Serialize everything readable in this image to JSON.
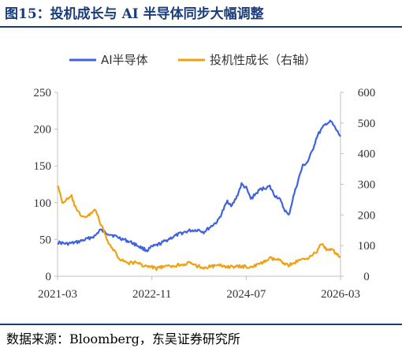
{
  "title": "图15：投机成长与 AI 半导体同步大幅调整",
  "source": "数据来源：Bloomberg，东吴证券研究所",
  "chart_data": {
    "type": "line",
    "x_ticks": [
      "2021-03",
      "2022-11",
      "2024-07",
      "2026-03"
    ],
    "xlim": [
      "2021-03",
      "2026-03"
    ],
    "left_axis": {
      "ylim": [
        0,
        250
      ],
      "ticks": [
        "0",
        "50",
        "100",
        "150",
        "200",
        "250"
      ]
    },
    "right_axis": {
      "ylim": [
        0,
        600
      ],
      "ticks": [
        "0",
        "100",
        "200",
        "300",
        "400",
        "500",
        "600"
      ]
    },
    "legend_position": "top-center",
    "series": [
      {
        "name": "AI半导体",
        "axis": "left",
        "color": "#3f63e0",
        "points": [
          [
            "2021-03",
            46
          ],
          [
            "2021-05",
            44
          ],
          [
            "2021-07",
            46
          ],
          [
            "2021-09",
            50
          ],
          [
            "2021-11",
            55
          ],
          [
            "2021-12",
            63
          ],
          [
            "2022-01",
            60
          ],
          [
            "2022-03",
            55
          ],
          [
            "2022-05",
            50
          ],
          [
            "2022-07",
            45
          ],
          [
            "2022-09",
            38
          ],
          [
            "2022-10",
            35
          ],
          [
            "2022-11",
            40
          ],
          [
            "2022-12",
            42
          ],
          [
            "2023-01",
            45
          ],
          [
            "2023-03",
            52
          ],
          [
            "2023-05",
            58
          ],
          [
            "2023-07",
            62
          ],
          [
            "2023-09",
            63
          ],
          [
            "2023-10",
            60
          ],
          [
            "2023-12",
            70
          ],
          [
            "2024-01",
            75
          ],
          [
            "2024-02",
            88
          ],
          [
            "2024-03",
            102
          ],
          [
            "2024-04",
            96
          ],
          [
            "2024-05",
            108
          ],
          [
            "2024-06",
            125
          ],
          [
            "2024-07",
            120
          ],
          [
            "2024-08",
            105
          ],
          [
            "2024-09",
            112
          ],
          [
            "2024-10",
            118
          ],
          [
            "2024-11",
            120
          ],
          [
            "2024-12",
            122
          ],
          [
            "2025-01",
            110
          ],
          [
            "2025-02",
            106
          ],
          [
            "2025-03",
            92
          ],
          [
            "2025-04",
            82
          ],
          [
            "2025-05",
            108
          ],
          [
            "2025-06",
            130
          ],
          [
            "2025-07",
            150
          ],
          [
            "2025-08",
            155
          ],
          [
            "2025-09",
            170
          ],
          [
            "2025-10",
            190
          ],
          [
            "2025-11",
            200
          ],
          [
            "2025-12",
            208
          ],
          [
            "2026-01",
            210
          ],
          [
            "2026-02",
            200
          ],
          [
            "2026-03",
            190
          ]
        ]
      },
      {
        "name": "投机性成长（右轴）",
        "axis": "right",
        "color": "#f0a010",
        "points": [
          [
            "2021-03",
            300
          ],
          [
            "2021-04",
            240
          ],
          [
            "2021-05",
            250
          ],
          [
            "2021-06",
            260
          ],
          [
            "2021-07",
            215
          ],
          [
            "2021-08",
            200
          ],
          [
            "2021-09",
            190
          ],
          [
            "2021-10",
            205
          ],
          [
            "2021-11",
            220
          ],
          [
            "2021-12",
            175
          ],
          [
            "2022-01",
            140
          ],
          [
            "2022-02",
            100
          ],
          [
            "2022-03",
            85
          ],
          [
            "2022-04",
            60
          ],
          [
            "2022-05",
            50
          ],
          [
            "2022-06",
            42
          ],
          [
            "2022-07",
            45
          ],
          [
            "2022-08",
            44
          ],
          [
            "2022-09",
            36
          ],
          [
            "2022-10",
            32
          ],
          [
            "2022-11",
            30
          ],
          [
            "2022-12",
            25
          ],
          [
            "2023-01",
            30
          ],
          [
            "2023-03",
            32
          ],
          [
            "2023-05",
            38
          ],
          [
            "2023-07",
            43
          ],
          [
            "2023-08",
            36
          ],
          [
            "2023-10",
            28
          ],
          [
            "2023-12",
            33
          ],
          [
            "2024-02",
            34
          ],
          [
            "2024-04",
            30
          ],
          [
            "2024-06",
            32
          ],
          [
            "2024-08",
            30
          ],
          [
            "2024-10",
            40
          ],
          [
            "2024-12",
            58
          ],
          [
            "2025-02",
            52
          ],
          [
            "2025-04",
            36
          ],
          [
            "2025-06",
            50
          ],
          [
            "2025-08",
            60
          ],
          [
            "2025-10",
            80
          ],
          [
            "2025-11",
            108
          ],
          [
            "2025-12",
            85
          ],
          [
            "2026-01",
            90
          ],
          [
            "2026-02",
            75
          ],
          [
            "2026-03",
            65
          ]
        ]
      }
    ]
  }
}
